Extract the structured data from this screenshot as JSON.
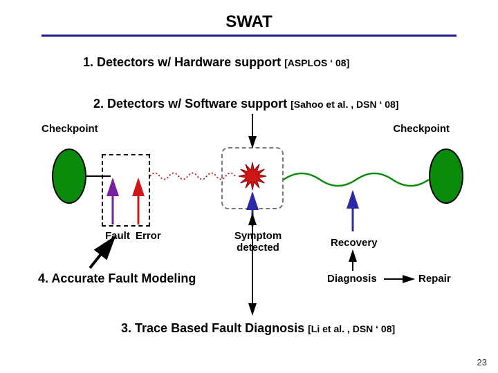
{
  "title": "SWAT",
  "line1": {
    "num": "1.",
    "text": "Detectors w/ Hardware support",
    "cite": "[ASPLOS ‘ 08]"
  },
  "line2": {
    "num": "2.",
    "text": "Detectors w/ Software support",
    "cite": "[Sahoo et al. , DSN ‘ 08]"
  },
  "checkpoint_left": "Checkpoint",
  "checkpoint_right": "Checkpoint",
  "fault_label": "Fault",
  "error_label": "Error",
  "symptom_label": "Symptom detected",
  "recovery_label": "Recovery",
  "diagnosis_label": "Diagnosis",
  "repair_label": "Repair",
  "line3": "4. Accurate Fault Modeling",
  "line4": {
    "num": "3.",
    "text": "Trace Based Fault Diagnosis",
    "cite": "[Li et al. , DSN ‘ 08]"
  },
  "page_number": "23",
  "colors": {
    "ellipse_fill": "#0a8a0a",
    "title_rule": "#1a1a8a",
    "fault_arrow": "#7a1fa0",
    "error_arrow": "#d01717",
    "wave": "#c02020",
    "blue_arrow": "#2a2aa8",
    "green_wave": "#0a8a0a",
    "black": "#000000"
  },
  "diagram": {
    "ellipse_w": 50,
    "ellipse_h": 80,
    "arrow_head": 10
  }
}
